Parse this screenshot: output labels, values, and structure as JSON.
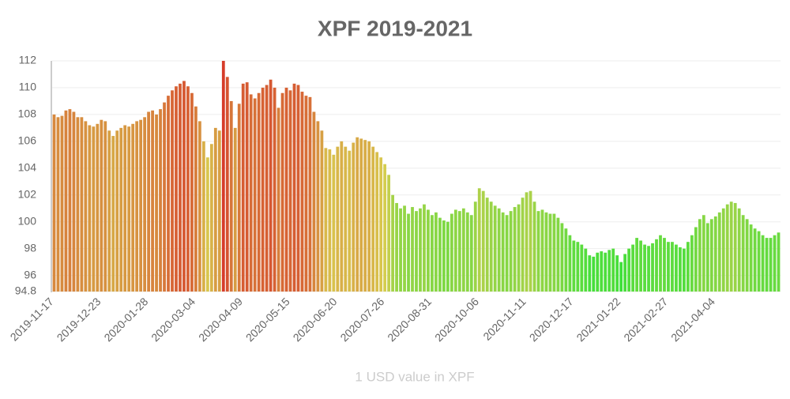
{
  "chart_data": {
    "type": "bar",
    "title": "XPF 2019-2021",
    "x_label": "1 USD value in XPF",
    "categories": [
      "2019-11-17",
      null,
      null,
      null,
      null,
      null,
      null,
      null,
      null,
      null,
      null,
      null,
      "2019-12-23",
      null,
      null,
      null,
      null,
      null,
      null,
      null,
      null,
      null,
      null,
      null,
      "2020-01-28",
      null,
      null,
      null,
      null,
      null,
      null,
      null,
      null,
      null,
      null,
      null,
      "2020-03-04",
      null,
      null,
      null,
      null,
      null,
      null,
      null,
      null,
      null,
      null,
      null,
      "2020-04-09",
      null,
      null,
      null,
      null,
      null,
      null,
      null,
      null,
      null,
      null,
      null,
      "2020-05-15",
      null,
      null,
      null,
      null,
      null,
      null,
      null,
      null,
      null,
      null,
      null,
      "2020-06-20",
      null,
      null,
      null,
      null,
      null,
      null,
      null,
      null,
      null,
      null,
      null,
      "2020-07-26",
      null,
      null,
      null,
      null,
      null,
      null,
      null,
      null,
      null,
      null,
      null,
      "2020-08-31",
      null,
      null,
      null,
      null,
      null,
      null,
      null,
      null,
      null,
      null,
      null,
      "2020-10-06",
      null,
      null,
      null,
      null,
      null,
      null,
      null,
      null,
      null,
      null,
      null,
      "2020-11-11",
      null,
      null,
      null,
      null,
      null,
      null,
      null,
      null,
      null,
      null,
      null,
      "2020-12-17",
      null,
      null,
      null,
      null,
      null,
      null,
      null,
      null,
      null,
      null,
      null,
      "2021-01-22",
      null,
      null,
      null,
      null,
      null,
      null,
      null,
      null,
      null,
      null,
      null,
      "2021-02-27",
      null,
      null,
      null,
      null,
      null,
      null,
      null,
      null,
      null,
      null,
      null,
      "2021-04-04",
      null,
      null,
      null,
      null,
      null,
      null,
      null,
      null,
      null,
      null,
      null,
      null,
      null,
      null,
      null,
      null
    ],
    "values": [
      108.0,
      107.8,
      107.9,
      108.3,
      108.4,
      108.2,
      107.8,
      107.8,
      107.5,
      107.2,
      107.1,
      107.3,
      107.6,
      107.5,
      106.8,
      106.4,
      106.8,
      107.0,
      107.2,
      107.1,
      107.3,
      107.5,
      107.6,
      107.8,
      108.2,
      108.3,
      108.0,
      108.4,
      108.9,
      109.4,
      109.8,
      110.1,
      110.3,
      110.5,
      110.1,
      109.6,
      108.6,
      107.5,
      106.0,
      104.8,
      105.8,
      107.0,
      106.8,
      112.0,
      110.8,
      109.0,
      107.0,
      108.8,
      110.3,
      110.4,
      109.5,
      109.2,
      109.6,
      110.0,
      110.2,
      110.6,
      110.0,
      108.5,
      109.6,
      110.0,
      109.8,
      110.3,
      110.2,
      109.7,
      109.4,
      109.3,
      108.2,
      107.5,
      106.8,
      105.5,
      105.4,
      105.0,
      105.6,
      106.0,
      105.6,
      105.3,
      105.9,
      106.3,
      106.2,
      106.1,
      106.0,
      105.6,
      105.2,
      104.8,
      104.3,
      103.5,
      102.0,
      101.4,
      101.0,
      101.2,
      100.6,
      101.1,
      100.8,
      101.0,
      101.3,
      100.9,
      100.5,
      100.7,
      100.3,
      100.1,
      100.0,
      100.6,
      100.9,
      100.8,
      101.0,
      100.7,
      100.5,
      101.5,
      102.5,
      102.3,
      101.8,
      101.5,
      101.2,
      101.0,
      100.7,
      100.5,
      100.8,
      101.1,
      101.3,
      101.8,
      102.2,
      102.3,
      101.5,
      100.8,
      100.9,
      100.7,
      100.6,
      100.6,
      100.3,
      99.9,
      99.5,
      99.0,
      98.6,
      98.5,
      98.3,
      98.0,
      97.5,
      97.4,
      97.7,
      97.8,
      97.7,
      97.9,
      98.0,
      97.5,
      97.0,
      97.6,
      98.0,
      98.3,
      98.8,
      98.6,
      98.3,
      98.2,
      98.4,
      98.7,
      99.0,
      98.8,
      98.5,
      98.5,
      98.3,
      98.1,
      98.0,
      98.5,
      99.0,
      99.6,
      100.2,
      100.5,
      99.9,
      100.2,
      100.4,
      100.7,
      101.0,
      101.3,
      101.5,
      101.4,
      101.0,
      100.5,
      100.2,
      99.8,
      99.5,
      99.3,
      99.0,
      98.8,
      98.8,
      99.0,
      99.2
    ],
    "color_scale": [
      "#3ee03a",
      "#d8cc50",
      "#d63c2a"
    ],
    "ylim": [
      94.8,
      112
    ],
    "yticks": [
      94.8,
      96,
      98,
      100,
      102,
      104,
      106,
      108,
      110,
      112
    ],
    "grid": true
  }
}
